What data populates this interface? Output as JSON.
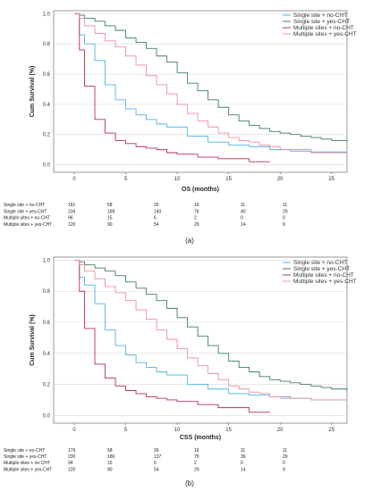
{
  "colors": {
    "single_no": "#4fb3e6",
    "single_yes": "#3d7f5e",
    "multi_no": "#b5304f",
    "multi_yes": "#ec8fa0",
    "grid": "#d9d9d9",
    "axis": "#555555"
  },
  "chart_data": [
    {
      "type": "line",
      "panel_label": "(a)",
      "xlabel": "OS (months)",
      "ylabel": "Cum Survival (%)",
      "xlim": [
        -2,
        26.5
      ],
      "ylim": [
        -0.05,
        1.02
      ],
      "x_ticks": [
        0,
        5,
        10,
        15,
        20,
        25
      ],
      "y_ticks": [
        0.0,
        0.2,
        0.4,
        0.6,
        0.8,
        1.0
      ],
      "y_tick_labels": [
        "0.0",
        "0.2",
        "0.4",
        "0.6",
        "0.8",
        "1.0"
      ],
      "grid": "horizontal",
      "legend_position": "top-right",
      "series": [
        {
          "name": "Single site + no-CHT",
          "color_key": "single_no",
          "x": [
            0,
            0.5,
            1,
            2,
            3,
            4,
            5,
            6,
            7,
            8,
            9,
            11,
            13,
            15,
            17,
            19,
            21,
            23,
            26.5
          ],
          "y": [
            1.0,
            0.86,
            0.8,
            0.69,
            0.53,
            0.43,
            0.37,
            0.33,
            0.3,
            0.27,
            0.25,
            0.19,
            0.15,
            0.13,
            0.12,
            0.1,
            0.09,
            0.085,
            0.085
          ]
        },
        {
          "name": "Single site + yes-CHT",
          "color_key": "single_yes",
          "x": [
            0,
            0.5,
            1,
            2,
            3,
            4,
            5,
            6,
            7,
            8,
            9,
            10,
            11,
            12,
            13,
            14,
            15,
            16,
            17,
            18,
            19,
            20,
            21,
            22,
            23,
            24,
            25,
            26.5
          ],
          "y": [
            1.0,
            0.99,
            0.97,
            0.95,
            0.92,
            0.89,
            0.84,
            0.81,
            0.77,
            0.72,
            0.68,
            0.61,
            0.54,
            0.49,
            0.43,
            0.38,
            0.33,
            0.29,
            0.26,
            0.24,
            0.22,
            0.21,
            0.2,
            0.19,
            0.18,
            0.17,
            0.16,
            0.15
          ]
        },
        {
          "name": "Multiple sites + no-CHT",
          "color_key": "multi_no",
          "x": [
            0,
            0.5,
            1,
            2,
            3,
            4,
            5,
            6,
            7,
            8,
            9,
            10,
            12,
            14,
            17,
            19
          ],
          "y": [
            1.0,
            0.76,
            0.52,
            0.3,
            0.21,
            0.16,
            0.14,
            0.12,
            0.11,
            0.1,
            0.08,
            0.07,
            0.05,
            0.04,
            0.02,
            0.02
          ]
        },
        {
          "name": "Multiple sites + yes-CHT",
          "color_key": "multi_yes",
          "x": [
            0,
            0.5,
            1,
            2,
            3,
            4,
            5,
            6,
            7,
            8,
            9,
            10,
            11,
            12,
            13,
            14,
            15,
            16,
            17,
            18,
            19,
            20,
            23,
            26.5
          ],
          "y": [
            1.0,
            0.97,
            0.92,
            0.87,
            0.82,
            0.78,
            0.72,
            0.66,
            0.59,
            0.53,
            0.47,
            0.4,
            0.34,
            0.29,
            0.25,
            0.21,
            0.18,
            0.16,
            0.15,
            0.13,
            0.12,
            0.1,
            0.08,
            0.08
          ]
        }
      ],
      "risk_table": {
        "rows": [
          {
            "label": "Single site + no-CHT",
            "values": [
              "181",
              "58",
              "26",
              "16",
              "11",
              "11"
            ]
          },
          {
            "label": "Single site + yes-CHT",
            "values": [
              "234",
              "189",
              "140",
              "76",
              "40",
              "29"
            ]
          },
          {
            "label": "Multiple sites + no-CHT",
            "values": [
              "96",
              "15",
              "6",
              "2",
              "0",
              "0"
            ]
          },
          {
            "label": "Multiple sites + yes-CHT",
            "values": [
              "120",
              "90",
              "54",
              "29",
              "14",
              "9"
            ]
          }
        ]
      }
    },
    {
      "type": "line",
      "panel_label": "(b)",
      "xlabel": "CSS (months)",
      "ylabel": "Cum Survival (%)",
      "xlim": [
        -2,
        26.5
      ],
      "ylim": [
        -0.05,
        1.02
      ],
      "x_ticks": [
        0,
        5,
        10,
        15,
        20,
        25
      ],
      "y_ticks": [
        0.0,
        0.2,
        0.4,
        0.6,
        0.8,
        1.0
      ],
      "y_tick_labels": [
        "0.0",
        "0.2",
        "0.4",
        "0.6",
        "0.8",
        "1.0"
      ],
      "grid": "horizontal",
      "legend_position": "top-right",
      "series": [
        {
          "name": "Single site + no-CHT",
          "color_key": "single_no",
          "x": [
            0,
            0.5,
            1,
            2,
            3,
            4,
            5,
            6,
            7,
            8,
            9,
            11,
            13,
            15,
            17,
            19,
            21,
            23,
            26.5
          ],
          "y": [
            1.0,
            0.89,
            0.84,
            0.72,
            0.55,
            0.45,
            0.39,
            0.34,
            0.31,
            0.28,
            0.26,
            0.2,
            0.17,
            0.14,
            0.13,
            0.12,
            0.11,
            0.1,
            0.1
          ]
        },
        {
          "name": "Single site + yes-CHT",
          "color_key": "single_yes",
          "x": [
            0,
            0.5,
            1,
            2,
            3,
            4,
            5,
            6,
            7,
            8,
            9,
            10,
            11,
            12,
            13,
            14,
            15,
            16,
            17,
            18,
            19,
            20,
            21,
            22,
            23,
            24,
            25,
            26.5
          ],
          "y": [
            1.0,
            0.99,
            0.97,
            0.95,
            0.93,
            0.9,
            0.86,
            0.82,
            0.78,
            0.74,
            0.69,
            0.63,
            0.57,
            0.51,
            0.45,
            0.4,
            0.35,
            0.31,
            0.28,
            0.25,
            0.23,
            0.22,
            0.21,
            0.2,
            0.19,
            0.18,
            0.17,
            0.16
          ]
        },
        {
          "name": "Multiple sites + no-CHT",
          "color_key": "multi_no",
          "x": [
            0,
            0.5,
            1,
            2,
            3,
            4,
            5,
            6,
            7,
            8,
            9,
            10,
            12,
            14,
            17,
            19
          ],
          "y": [
            1.0,
            0.8,
            0.56,
            0.33,
            0.24,
            0.19,
            0.16,
            0.14,
            0.12,
            0.11,
            0.1,
            0.09,
            0.07,
            0.05,
            0.02,
            0.02
          ]
        },
        {
          "name": "Multiple sites + yes-CHT",
          "color_key": "multi_yes",
          "x": [
            0,
            0.5,
            1,
            2,
            3,
            4,
            5,
            6,
            7,
            8,
            9,
            10,
            11,
            12,
            13,
            14,
            15,
            16,
            17,
            18,
            19,
            20,
            23,
            26.5
          ],
          "y": [
            1.0,
            0.97,
            0.93,
            0.88,
            0.83,
            0.79,
            0.74,
            0.68,
            0.62,
            0.55,
            0.49,
            0.43,
            0.37,
            0.32,
            0.27,
            0.23,
            0.19,
            0.17,
            0.15,
            0.14,
            0.12,
            0.11,
            0.1,
            0.1
          ]
        }
      ],
      "risk_table": {
        "rows": [
          {
            "label": "Single site + no-CHT",
            "values": [
              "179",
              "58",
              "26",
              "16",
              "11",
              "11"
            ]
          },
          {
            "label": "Single site + yes-CHT",
            "values": [
              "230",
              "186",
              "137",
              "75",
              "39",
              "29"
            ]
          },
          {
            "label": "Multiple sites + no-CHT",
            "values": [
              "94",
              "15",
              "6",
              "2",
              "0",
              "0"
            ]
          },
          {
            "label": "Multiple sites + yes-CHT",
            "values": [
              "120",
              "90",
              "54",
              "29",
              "14",
              "9"
            ]
          }
        ]
      }
    }
  ]
}
